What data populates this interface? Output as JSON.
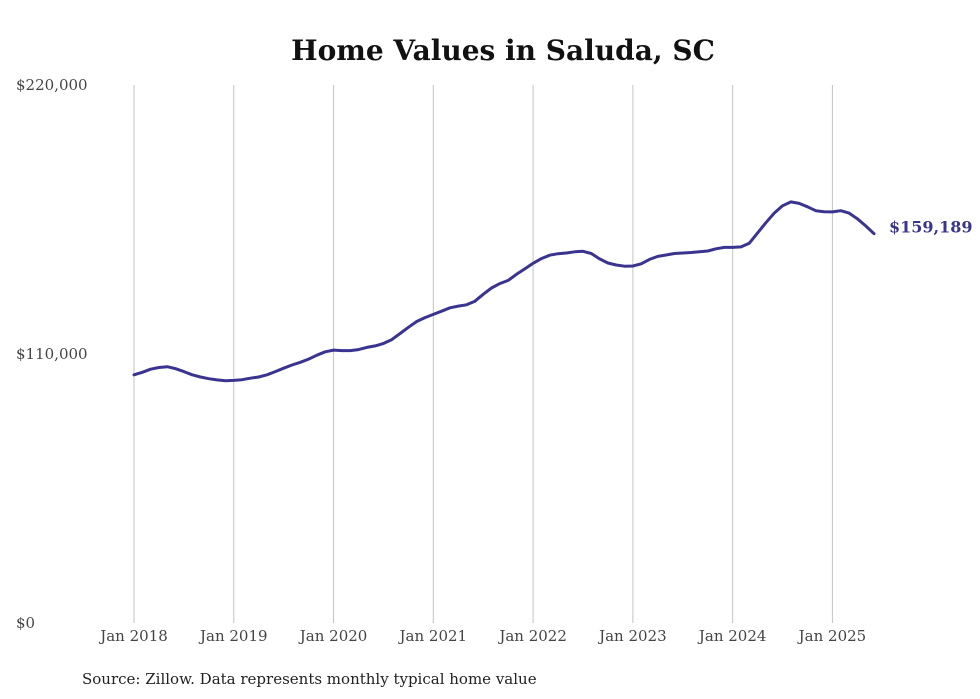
{
  "colors": {
    "series": "#3a3490",
    "grid": "#c4c4c4",
    "text": "#444444"
  },
  "chart_data": {
    "type": "line",
    "title": "Home Values in Saluda, SC",
    "source": "Source: Zillow. Data represents monthly typical home value",
    "xlabel": "",
    "ylabel": "",
    "ylim": [
      0,
      220000
    ],
    "xlim": [
      "2018-01",
      "2025-06"
    ],
    "yticks": [
      {
        "value": 0,
        "label": "$0"
      },
      {
        "value": 110000,
        "label": "$110,000"
      },
      {
        "value": 220000,
        "label": "$220,000"
      }
    ],
    "xticks": [
      {
        "value": "2018-01",
        "label": "Jan 2018"
      },
      {
        "value": "2019-01",
        "label": "Jan 2019"
      },
      {
        "value": "2020-01",
        "label": "Jan 2020"
      },
      {
        "value": "2021-01",
        "label": "Jan 2021"
      },
      {
        "value": "2022-01",
        "label": "Jan 2022"
      },
      {
        "value": "2023-01",
        "label": "Jan 2023"
      },
      {
        "value": "2024-01",
        "label": "Jan 2024"
      },
      {
        "value": "2025-01",
        "label": "Jan 2025"
      }
    ],
    "grid": {
      "vertical": true,
      "horizontal": false
    },
    "end_label": "$159,189",
    "series": [
      {
        "x": [
          "2018-01",
          "2018-02",
          "2018-03",
          "2018-04",
          "2018-05",
          "2018-06",
          "2018-07",
          "2018-08",
          "2018-09",
          "2018-10",
          "2018-11",
          "2018-12",
          "2019-01",
          "2019-02",
          "2019-03",
          "2019-04",
          "2019-05",
          "2019-06",
          "2019-07",
          "2019-08",
          "2019-09",
          "2019-10",
          "2019-11",
          "2019-12",
          "2020-01",
          "2020-02",
          "2020-03",
          "2020-04",
          "2020-05",
          "2020-06",
          "2020-07",
          "2020-08",
          "2020-09",
          "2020-10",
          "2020-11",
          "2020-12",
          "2021-01",
          "2021-02",
          "2021-03",
          "2021-04",
          "2021-05",
          "2021-06",
          "2021-07",
          "2021-08",
          "2021-09",
          "2021-10",
          "2021-11",
          "2021-12",
          "2022-01",
          "2022-02",
          "2022-03",
          "2022-04",
          "2022-05",
          "2022-06",
          "2022-07",
          "2022-08",
          "2022-09",
          "2022-10",
          "2022-11",
          "2022-12",
          "2023-01",
          "2023-02",
          "2023-03",
          "2023-04",
          "2023-05",
          "2023-06",
          "2023-07",
          "2023-08",
          "2023-09",
          "2023-10",
          "2023-11",
          "2023-12",
          "2024-01",
          "2024-02",
          "2024-03",
          "2024-04",
          "2024-05",
          "2024-06",
          "2024-07",
          "2024-08",
          "2024-09",
          "2024-10",
          "2024-11",
          "2024-12",
          "2025-01",
          "2025-02",
          "2025-03",
          "2025-04",
          "2025-05",
          "2025-06"
        ],
        "y": [
          101500,
          102500,
          103800,
          104500,
          104800,
          104000,
          102800,
          101500,
          100600,
          99900,
          99400,
          99100,
          99200,
          99500,
          100100,
          100600,
          101500,
          102800,
          104200,
          105500,
          106600,
          107900,
          109500,
          110900,
          111600,
          111400,
          111400,
          111800,
          112700,
          113300,
          114300,
          115900,
          118400,
          120900,
          123300,
          124900,
          126200,
          127500,
          128900,
          129600,
          130100,
          131600,
          134400,
          137000,
          138800,
          140100,
          142600,
          144800,
          147100,
          149000,
          150400,
          151000,
          151300,
          151800,
          152000,
          151100,
          148900,
          147200,
          146400,
          145900,
          146000,
          146900,
          148700,
          149900,
          150500,
          151100,
          151300,
          151500,
          151800,
          152100,
          153000,
          153600,
          153600,
          153800,
          155300,
          159500,
          163700,
          167600,
          170600,
          172200,
          171600,
          170200,
          168600,
          168200,
          168100,
          168600,
          167600,
          165300,
          162400,
          159189
        ]
      }
    ]
  }
}
